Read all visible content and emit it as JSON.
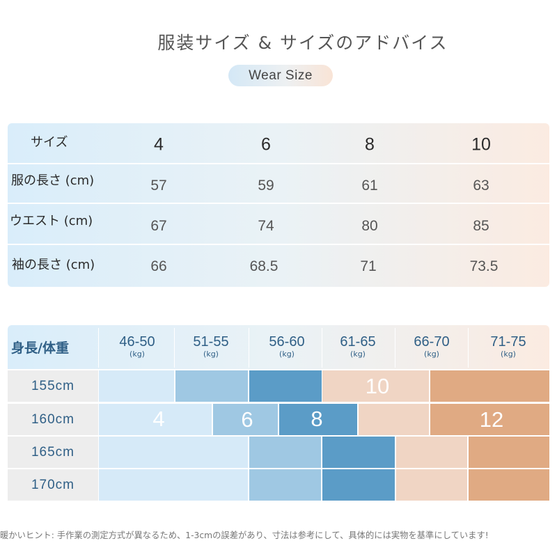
{
  "title": "服装サイズ & サイズのアドバイス",
  "subtitle_pill": "Wear  Size",
  "size_table": {
    "header_label": "サイズ",
    "sizes": [
      "4",
      "6",
      "8",
      "10"
    ],
    "rows": [
      {
        "label": "服の長さ (cm)",
        "values": [
          "57",
          "59",
          "61",
          "63"
        ]
      },
      {
        "label": "ウエスト (cm)",
        "values": [
          "67",
          "74",
          "80",
          "85"
        ]
      },
      {
        "label": "袖の長さ (cm)",
        "values": [
          "66",
          "68.5",
          "71",
          "73.5"
        ]
      }
    ]
  },
  "recommend_grid": {
    "header_label": "身長/体重",
    "weight_ranges": [
      "46-50",
      "51-55",
      "56-60",
      "61-65",
      "66-70",
      "71-75"
    ],
    "weight_unit": "(kg)",
    "heights": [
      "155cm",
      "160cm",
      "165cm",
      "170cm"
    ],
    "size_labels": {
      "s4": "4",
      "s6": "6",
      "s8": "8",
      "s10": "10",
      "s12": "12"
    },
    "colors": {
      "size4": "#d6eaf8",
      "size6": "#9fc8e3",
      "size8": "#5b9cc7",
      "size10": "#f0d5c4",
      "size12": "#e0aa83"
    }
  },
  "footnote": "暖かいヒント: 手作業の測定方式が異なるため、1-3cmの誤差があり、寸法は参考にして、具体的には実物を基準にしています!"
}
